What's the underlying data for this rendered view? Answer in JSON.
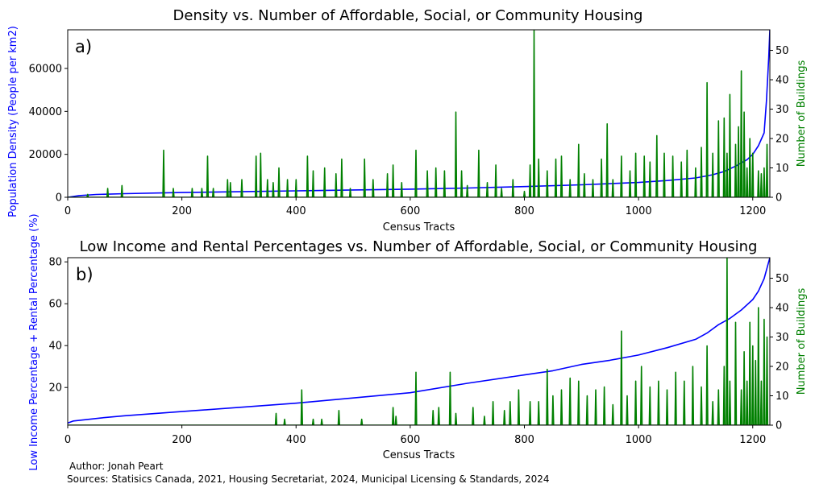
{
  "chart_data": [
    {
      "type": "line",
      "panel_label": "a)",
      "title": "Density vs. Number of Affordable, Social, or Community Housing",
      "xlabel": "Census Tracts",
      "ylabel": "Population Density (People per km2)",
      "ylabel_right": "Number of Buildings",
      "xlim": [
        0,
        1230
      ],
      "ylim": [
        0,
        78000
      ],
      "ylim_right": [
        0,
        57
      ],
      "xticks": [
        0,
        200,
        400,
        600,
        800,
        1000,
        1200
      ],
      "yticks": [
        0,
        20000,
        40000,
        60000
      ],
      "yticks_right": [
        0,
        10,
        20,
        30,
        40,
        50
      ],
      "grid": false,
      "series": [
        {
          "color": "#0000ff",
          "axis": "left",
          "x": [
            0,
            20,
            50,
            100,
            200,
            300,
            400,
            500,
            600,
            700,
            800,
            900,
            1000,
            1050,
            1100,
            1130,
            1150,
            1170,
            1190,
            1200,
            1210,
            1220,
            1224,
            1228,
            1230
          ],
          "y": [
            0,
            800,
            1300,
            1700,
            2200,
            2600,
            3000,
            3400,
            3800,
            4300,
            5000,
            5800,
            6900,
            7800,
            9000,
            10500,
            12000,
            14500,
            17500,
            20000,
            24000,
            30000,
            45000,
            65000,
            78000
          ]
        },
        {
          "color": "#008000",
          "axis": "right",
          "x": [
            35,
            70,
            95,
            168,
            185,
            218,
            235,
            245,
            255,
            280,
            285,
            305,
            330,
            338,
            350,
            360,
            370,
            385,
            400,
            420,
            430,
            450,
            470,
            480,
            495,
            520,
            535,
            560,
            570,
            585,
            610,
            630,
            645,
            660,
            680,
            690,
            700,
            720,
            735,
            750,
            760,
            780,
            800,
            810,
            817,
            825,
            840,
            855,
            865,
            880,
            895,
            905,
            920,
            935,
            945,
            955,
            970,
            985,
            995,
            1010,
            1020,
            1032,
            1045,
            1060,
            1075,
            1085,
            1100,
            1110,
            1120,
            1130,
            1140,
            1150,
            1155,
            1160,
            1170,
            1175,
            1180,
            1185,
            1190,
            1195,
            1200,
            1210,
            1215,
            1220,
            1225
          ],
          "y": [
            1,
            3,
            4,
            16,
            3,
            3,
            3,
            14,
            3,
            6,
            5,
            6,
            14,
            15,
            6,
            5,
            10,
            6,
            6,
            14,
            9,
            10,
            8,
            13,
            3,
            13,
            6,
            8,
            11,
            5,
            16,
            9,
            10,
            9,
            29,
            9,
            4,
            16,
            5,
            11,
            3,
            6,
            2,
            11,
            57,
            13,
            9,
            13,
            14,
            6,
            18,
            8,
            6,
            13,
            25,
            6,
            14,
            9,
            15,
            14,
            12,
            21,
            15,
            14,
            12,
            16,
            10,
            17,
            39,
            15,
            26,
            27,
            15,
            35,
            18,
            24,
            43,
            29,
            10,
            20,
            15,
            9,
            8,
            10,
            18
          ]
        }
      ]
    },
    {
      "type": "line",
      "panel_label": "b)",
      "title": "Low Income and Rental Percentages vs. Number of Affordable, Social, or Community Housing",
      "xlabel": "Census Tracts",
      "ylabel": "Low Income Percentage + Rental Percentage (%)",
      "ylabel_right": "Number of Buildings",
      "xlim": [
        0,
        1230
      ],
      "ylim": [
        2,
        82
      ],
      "ylim_right": [
        0,
        57
      ],
      "xticks": [
        0,
        200,
        400,
        600,
        800,
        1000,
        1200
      ],
      "yticks": [
        20,
        40,
        60,
        80
      ],
      "yticks_right": [
        0,
        10,
        20,
        30,
        40,
        50
      ],
      "grid": false,
      "series": [
        {
          "color": "#0000ff",
          "axis": "left",
          "x": [
            0,
            10,
            60,
            100,
            200,
            300,
            400,
            500,
            600,
            700,
            800,
            850,
            900,
            950,
            1000,
            1050,
            1100,
            1120,
            1140,
            1160,
            1180,
            1200,
            1210,
            1220,
            1230
          ],
          "y": [
            3,
            4,
            5.5,
            6.5,
            8.5,
            10.5,
            12.5,
            15,
            17.5,
            22,
            26,
            28,
            31,
            33,
            35.5,
            39,
            43,
            46,
            50,
            53,
            57,
            62,
            66,
            72,
            82
          ]
        },
        {
          "color": "#008000",
          "axis": "right",
          "x": [
            365,
            380,
            410,
            430,
            445,
            475,
            515,
            570,
            575,
            610,
            640,
            650,
            670,
            680,
            710,
            730,
            745,
            765,
            775,
            790,
            810,
            825,
            840,
            850,
            865,
            880,
            895,
            910,
            925,
            940,
            955,
            970,
            980,
            995,
            1005,
            1020,
            1035,
            1050,
            1065,
            1080,
            1095,
            1110,
            1120,
            1130,
            1140,
            1150,
            1155,
            1160,
            1170,
            1180,
            1185,
            1190,
            1195,
            1200,
            1205,
            1210,
            1215,
            1220,
            1225
          ],
          "y": [
            4,
            2,
            12,
            2,
            2,
            5,
            2,
            6,
            3,
            18,
            5,
            6,
            18,
            4,
            6,
            3,
            8,
            5,
            8,
            12,
            8,
            8,
            19,
            10,
            12,
            16,
            15,
            10,
            12,
            13,
            7,
            32,
            10,
            15,
            20,
            13,
            15,
            12,
            18,
            15,
            20,
            13,
            27,
            8,
            12,
            20,
            57,
            15,
            35,
            12,
            25,
            15,
            35,
            27,
            22,
            40,
            15,
            36,
            30
          ]
        }
      ]
    }
  ],
  "footer": {
    "author": "Author: Jonah Peart",
    "sources": "Sources: Statisics Canada, 2021, Housing Secretariat, 2024, Municipal Licensing & Standards, 2024"
  }
}
